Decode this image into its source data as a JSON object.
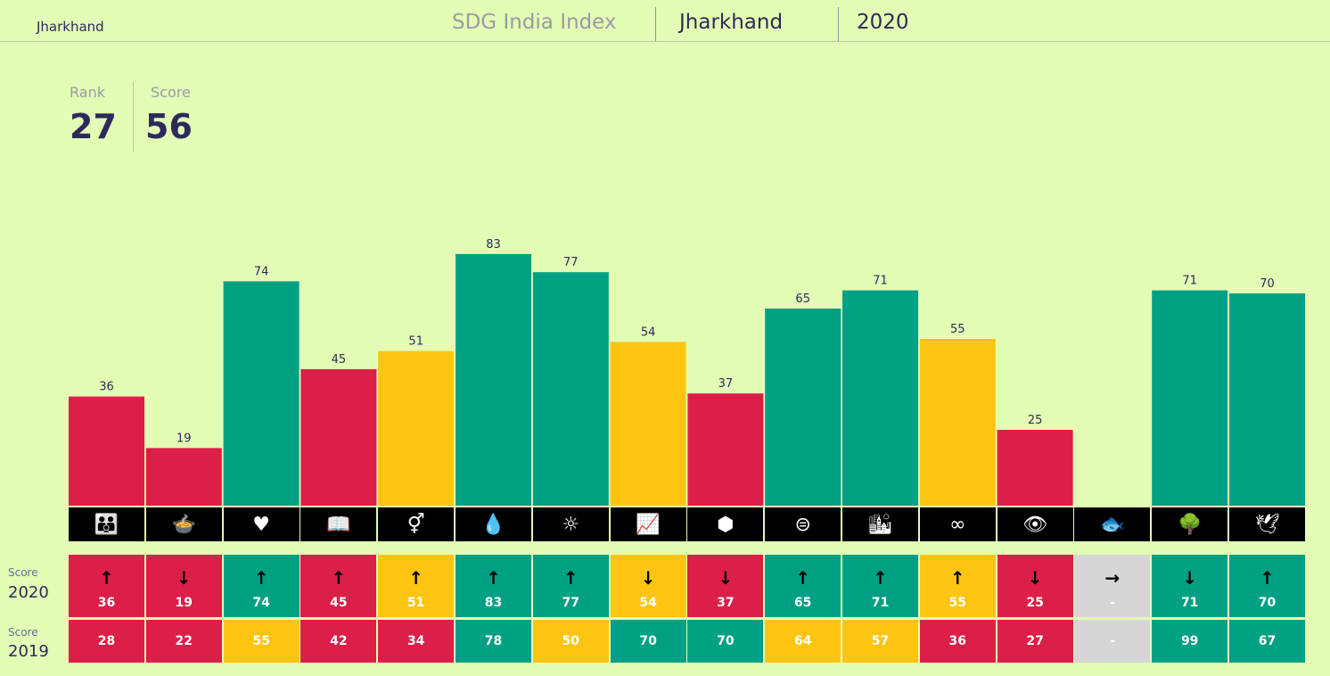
{
  "header": {
    "brand": "Jharkhand",
    "title": "SDG India Index",
    "state": "Jharkhand",
    "year": "2020"
  },
  "stats": {
    "rank_label": "Rank",
    "rank_value": "27",
    "score_label": "Score",
    "score_value": "56"
  },
  "colors": {
    "red": "#dc1f48",
    "yellow": "#fdc512",
    "green": "#00a084",
    "grey": "#d6d6d6"
  },
  "icons": [
    "family-icon",
    "bowl-icon",
    "heartbeat-icon",
    "book-icon",
    "gender-icon",
    "water-icon",
    "sun-icon",
    "growth-chart-icon",
    "cubes-icon",
    "equal-icon",
    "city-icon",
    "infinity-icon",
    "eye-icon",
    "fish-icon",
    "tree-icon",
    "dove-icon"
  ],
  "icon_glyphs": [
    "👪",
    "🍲",
    "♥",
    "📖",
    "⚥",
    "💧",
    "☼",
    "📈",
    "⬢",
    "⊜",
    "🏙",
    "∞",
    "👁",
    "🐟",
    "🌳",
    "🕊"
  ],
  "table": {
    "score_label": "Score",
    "row_2020_year": "2020",
    "row_2019_year": "2019",
    "trend_symbols": {
      "up": "↑",
      "down": "↓",
      "flat": "→"
    }
  },
  "chart_data": {
    "type": "bar",
    "categories": [
      "SDG1",
      "SDG2",
      "SDG3",
      "SDG4",
      "SDG5",
      "SDG6",
      "SDG7",
      "SDG8",
      "SDG9",
      "SDG10",
      "SDG11",
      "SDG12",
      "SDG13",
      "SDG14",
      "SDG15",
      "SDG16"
    ],
    "values": [
      36,
      19,
      74,
      45,
      51,
      83,
      77,
      54,
      37,
      65,
      71,
      55,
      25,
      null,
      71,
      70
    ],
    "bar_colors": [
      "red",
      "red",
      "green",
      "red",
      "yellow",
      "green",
      "green",
      "yellow",
      "red",
      "green",
      "green",
      "yellow",
      "red",
      "grey",
      "green",
      "green"
    ],
    "ylim": [
      0,
      100
    ],
    "scores_2020": [
      "36",
      "19",
      "74",
      "45",
      "51",
      "83",
      "77",
      "54",
      "37",
      "65",
      "71",
      "55",
      "25",
      "-",
      "71",
      "70"
    ],
    "colors_2020": [
      "red",
      "red",
      "green",
      "red",
      "yellow",
      "green",
      "green",
      "yellow",
      "red",
      "green",
      "green",
      "yellow",
      "red",
      "grey",
      "green",
      "green"
    ],
    "trend_2020": [
      "up",
      "down",
      "up",
      "up",
      "up",
      "up",
      "up",
      "down",
      "down",
      "up",
      "up",
      "up",
      "down",
      "flat",
      "down",
      "up"
    ],
    "scores_2019": [
      "28",
      "22",
      "55",
      "42",
      "34",
      "78",
      "50",
      "70",
      "70",
      "64",
      "57",
      "36",
      "27",
      "-",
      "99",
      "67"
    ],
    "colors_2019": [
      "red",
      "red",
      "yellow",
      "red",
      "red",
      "green",
      "yellow",
      "green",
      "green",
      "yellow",
      "yellow",
      "red",
      "red",
      "grey",
      "green",
      "green"
    ]
  }
}
